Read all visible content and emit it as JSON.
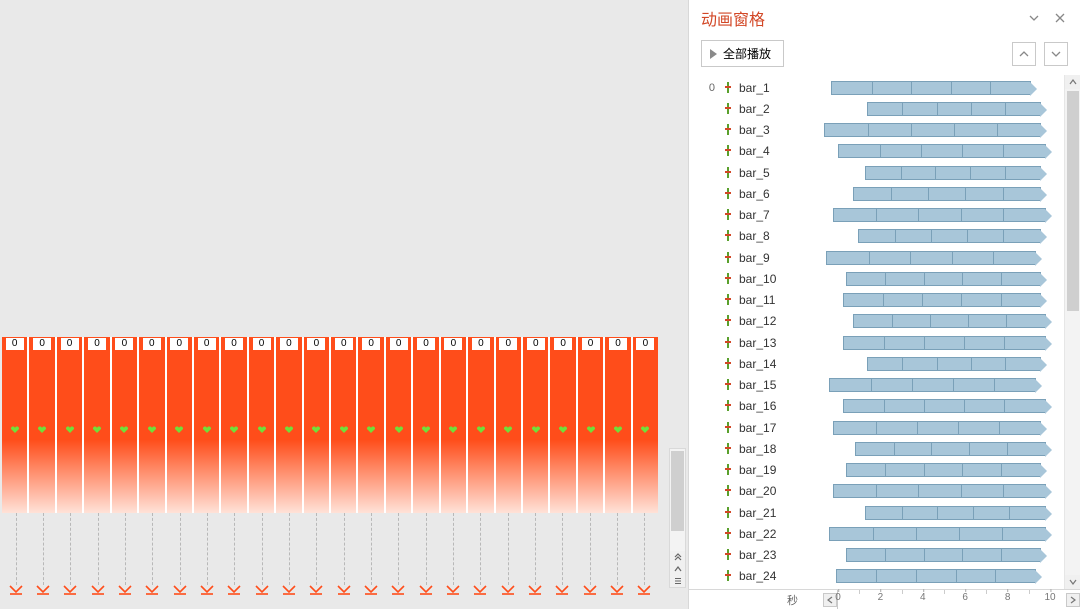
{
  "pane": {
    "title": "动画窗格",
    "play_all_label": "全部播放",
    "ruler_label": "秒",
    "colors": {
      "accent": "#d24726",
      "timeline_fill": "#a8c6d9",
      "timeline_border": "#7aa0b8",
      "bar_fill": "#ff4d1a"
    },
    "timeline": {
      "axis_min": 0,
      "axis_max": 10,
      "ticks": [
        0,
        2,
        4,
        6,
        8,
        10
      ]
    }
  },
  "slide": {
    "bar_count": 24,
    "bar_top_labels": [
      "0",
      "0",
      "0",
      "0",
      "0",
      "0",
      "0",
      "0",
      "0",
      "0",
      "0",
      "0",
      "0",
      "0",
      "0",
      "0",
      "0",
      "0",
      "0",
      "0",
      "0",
      "0",
      "0",
      "0"
    ]
  },
  "animations": {
    "group_order": "0",
    "items": [
      {
        "name": "bar_1",
        "start": 0.5,
        "end": 8.8
      },
      {
        "name": "bar_2",
        "start": 2.0,
        "end": 9.2
      },
      {
        "name": "bar_3",
        "start": 0.2,
        "end": 9.2
      },
      {
        "name": "bar_4",
        "start": 0.8,
        "end": 9.4
      },
      {
        "name": "bar_5",
        "start": 1.9,
        "end": 9.2
      },
      {
        "name": "bar_6",
        "start": 1.4,
        "end": 9.2
      },
      {
        "name": "bar_7",
        "start": 0.6,
        "end": 9.4
      },
      {
        "name": "bar_8",
        "start": 1.6,
        "end": 9.2
      },
      {
        "name": "bar_9",
        "start": 0.3,
        "end": 9.0
      },
      {
        "name": "bar_10",
        "start": 1.1,
        "end": 9.2
      },
      {
        "name": "bar_11",
        "start": 1.0,
        "end": 9.2
      },
      {
        "name": "bar_12",
        "start": 1.4,
        "end": 9.4
      },
      {
        "name": "bar_13",
        "start": 1.0,
        "end": 9.4
      },
      {
        "name": "bar_14",
        "start": 2.0,
        "end": 9.2
      },
      {
        "name": "bar_15",
        "start": 0.4,
        "end": 9.0
      },
      {
        "name": "bar_16",
        "start": 1.0,
        "end": 9.4
      },
      {
        "name": "bar_17",
        "start": 0.6,
        "end": 9.2
      },
      {
        "name": "bar_18",
        "start": 1.5,
        "end": 9.4
      },
      {
        "name": "bar_19",
        "start": 1.1,
        "end": 9.2
      },
      {
        "name": "bar_20",
        "start": 0.6,
        "end": 9.4
      },
      {
        "name": "bar_21",
        "start": 1.9,
        "end": 9.4
      },
      {
        "name": "bar_22",
        "start": 0.4,
        "end": 9.4
      },
      {
        "name": "bar_23",
        "start": 1.1,
        "end": 9.2
      },
      {
        "name": "bar_24",
        "start": 0.7,
        "end": 9.0
      }
    ],
    "segment_count": 5
  }
}
